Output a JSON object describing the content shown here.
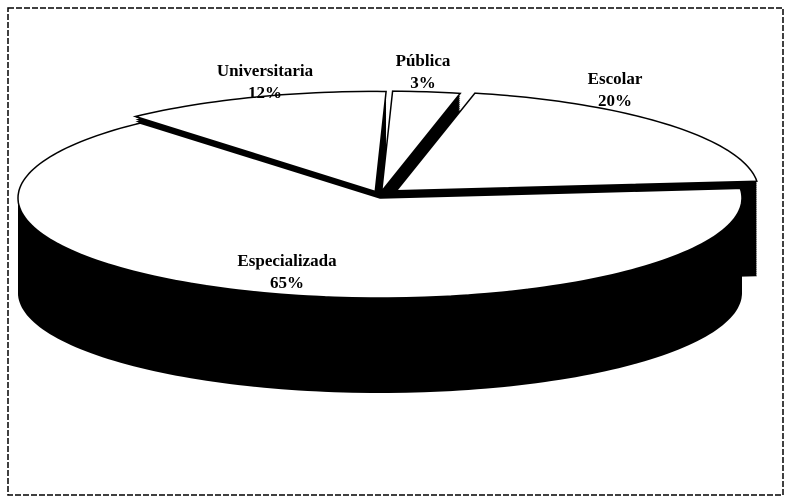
{
  "chart_data": {
    "type": "pie",
    "categories": [
      "Universitaria",
      "Pública",
      "Escolar",
      "Especializada"
    ],
    "values": [
      12,
      3,
      20,
      65
    ],
    "value_labels": [
      "12%",
      "3%",
      "20%",
      "65%"
    ],
    "colors": [
      "#ffffff",
      "#ffffff",
      "#ffffff",
      "#ffffff"
    ],
    "three_d": true
  }
}
